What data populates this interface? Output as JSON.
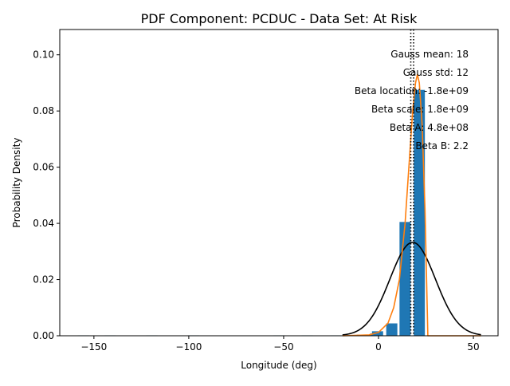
{
  "chart_data": {
    "type": "bar",
    "title": "PDF Component: PCDUC - Data Set: At Risk",
    "xlabel": "Longitude (deg)",
    "ylabel": "Probability Density",
    "xlim": [
      -168,
      63
    ],
    "ylim": [
      0,
      0.109
    ],
    "x_ticks": [
      -150,
      -100,
      -50,
      0,
      50
    ],
    "x_tick_labels": [
      "−150",
      "−100",
      "−50",
      "0",
      "50"
    ],
    "y_ticks": [
      0.0,
      0.02,
      0.04,
      0.06,
      0.08,
      0.1
    ],
    "y_tick_labels": [
      "0.00",
      "0.02",
      "0.04",
      "0.06",
      "0.08",
      "0.10"
    ],
    "grid": false,
    "bin_width": 6.9,
    "bars": [
      {
        "x": -155.5,
        "value": 0.00015
      },
      {
        "x": -141.5,
        "value": 0.00015
      },
      {
        "x": -119.5,
        "value": 0.00015
      },
      {
        "x": -97.5,
        "value": 0.00015
      },
      {
        "x": -52.5,
        "value": 0.00015
      },
      {
        "x": -37.5,
        "value": 0.00015
      },
      {
        "x": -22.5,
        "value": 0.00015
      },
      {
        "x": -8.5,
        "value": 0.0004
      },
      {
        "x": -1.5,
        "value": 0.0008
      },
      {
        "x": -0.5,
        "value": 0.0016
      },
      {
        "x": 7,
        "value": 0.0044
      },
      {
        "x": 14,
        "value": 0.0405
      },
      {
        "x": 21.5,
        "value": 0.0875
      }
    ],
    "gauss": {
      "mean": 18,
      "std": 12,
      "x_range": [
        -19,
        54
      ],
      "color": "#000000"
    },
    "beta_curve": {
      "color": "#ff7f0e",
      "points": [
        [
          -19,
          0.0
        ],
        [
          -5,
          0.0003
        ],
        [
          0,
          0.0012
        ],
        [
          5,
          0.0045
        ],
        [
          8,
          0.01
        ],
        [
          11,
          0.02
        ],
        [
          14,
          0.04
        ],
        [
          16,
          0.06
        ],
        [
          18,
          0.08
        ],
        [
          19.5,
          0.09
        ],
        [
          20.5,
          0.093
        ],
        [
          21.5,
          0.09
        ],
        [
          23,
          0.075
        ],
        [
          24.5,
          0.045
        ],
        [
          25.5,
          0.015
        ],
        [
          26,
          0.0
        ],
        [
          54,
          0.0
        ]
      ]
    },
    "vlines": [
      17,
      18.5
    ],
    "bar_color": "#1f77b4",
    "annotations": [
      "Gauss mean: 18",
      "Gauss std: 12",
      "Beta location: -1.8e+09",
      "Beta scale: 1.8e+09",
      "Beta A: 4.8e+08",
      "Beta B: 2.2"
    ],
    "annotation_placement": "top-right"
  }
}
